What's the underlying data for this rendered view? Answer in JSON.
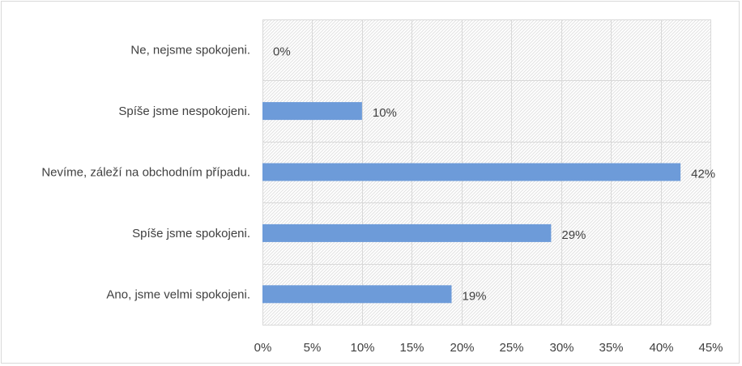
{
  "chart_data": {
    "type": "bar",
    "orientation": "horizontal",
    "categories": [
      "Ne, nejsme spokojeni.",
      "Spíše jsme nespokojeni.",
      "Nevíme, záleží na obchodním případu.",
      "Spíše jsme spokojeni.",
      "Ano, jsme velmi spokojeni."
    ],
    "values": [
      0,
      10,
      42,
      29,
      19
    ],
    "data_labels": [
      "0%",
      "10%",
      "42%",
      "29%",
      "19%"
    ],
    "x_ticks": [
      "0%",
      "5%",
      "10%",
      "15%",
      "20%",
      "25%",
      "30%",
      "35%",
      "40%",
      "45%"
    ],
    "xlim": [
      0,
      45
    ],
    "title": "",
    "xlabel": "",
    "ylabel": "",
    "grid": true,
    "legend": "none",
    "colors": {
      "bar": "#6d9bd9",
      "grid": "#d9d9d9",
      "plot_hatch": "#e2e2e2",
      "text": "#404040"
    }
  }
}
